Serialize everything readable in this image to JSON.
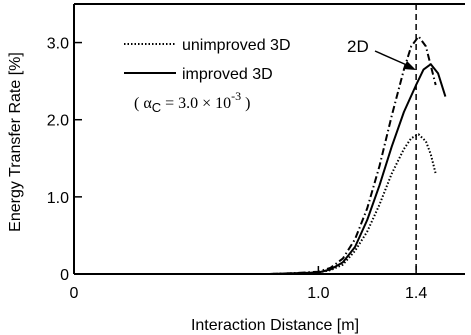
{
  "chart_data": {
    "type": "line",
    "xlabel": "Interaction  Distance [m]",
    "ylabel": "Energy Transfer Rate [%]",
    "xlim": [
      0,
      1.6
    ],
    "ylim": [
      0,
      3.5
    ],
    "x_ticks": [
      {
        "value": 0,
        "label": "0"
      },
      {
        "value": 1.0,
        "label": "1.0"
      },
      {
        "value": 1.4,
        "label": "1.4"
      }
    ],
    "y_ticks": [
      {
        "value": 0,
        "label": "0"
      },
      {
        "value": 1.0,
        "label": "1.0"
      },
      {
        "value": 2.0,
        "label": "2.0"
      },
      {
        "value": 3.0,
        "label": "3.0"
      }
    ],
    "grid": false,
    "legend_position": "top-left",
    "legend_entries": [
      {
        "label": "unimproved 3D",
        "style": "dotted"
      },
      {
        "label": "improved 3D",
        "style": "solid"
      }
    ],
    "annotations": {
      "alpha_prefix": "( ",
      "alpha_symbol": "α",
      "alpha_sub": "C",
      "alpha_value": " = 3.0 × 10",
      "alpha_exp": "-3",
      "alpha_suffix": " )",
      "series_2d_label": "2D"
    },
    "reference_line_x": 1.4,
    "series": [
      {
        "name": "2D",
        "style": "dashdot",
        "x": [
          0.8,
          0.9,
          1.0,
          1.05,
          1.1,
          1.15,
          1.2,
          1.25,
          1.3,
          1.35,
          1.38,
          1.41,
          1.44,
          1.46,
          1.48
        ],
        "y": [
          0.0,
          0.01,
          0.03,
          0.08,
          0.2,
          0.45,
          0.85,
          1.4,
          2.05,
          2.65,
          2.95,
          3.08,
          2.95,
          2.7,
          2.45
        ]
      },
      {
        "name": "improved 3D",
        "style": "solid",
        "x": [
          0.8,
          0.9,
          1.0,
          1.05,
          1.1,
          1.15,
          1.2,
          1.25,
          1.3,
          1.35,
          1.4,
          1.43,
          1.46,
          1.49,
          1.52
        ],
        "y": [
          0.0,
          0.01,
          0.02,
          0.06,
          0.15,
          0.35,
          0.7,
          1.15,
          1.65,
          2.1,
          2.45,
          2.65,
          2.72,
          2.6,
          2.3
        ]
      },
      {
        "name": "unimproved 3D",
        "style": "dotted",
        "x": [
          0.8,
          0.9,
          1.0,
          1.05,
          1.1,
          1.15,
          1.2,
          1.25,
          1.3,
          1.35,
          1.38,
          1.41,
          1.44,
          1.46,
          1.48
        ],
        "y": [
          0.0,
          0.01,
          0.02,
          0.05,
          0.12,
          0.3,
          0.55,
          0.9,
          1.3,
          1.62,
          1.76,
          1.81,
          1.72,
          1.55,
          1.3
        ]
      }
    ]
  }
}
